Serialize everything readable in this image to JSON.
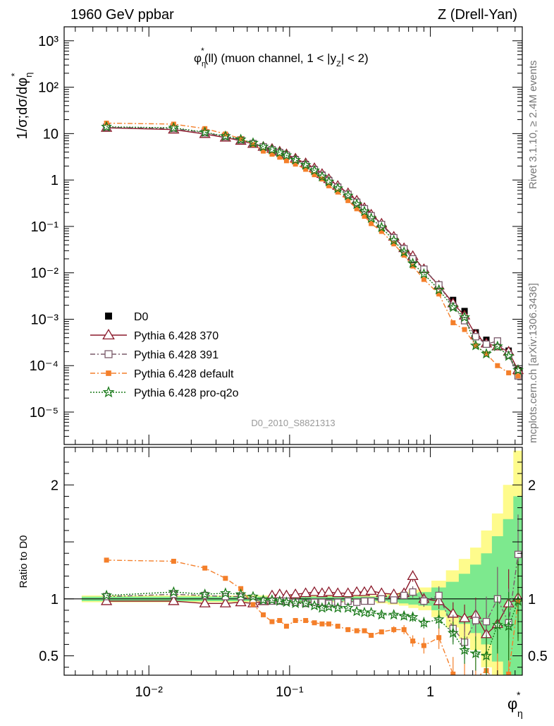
{
  "header": {
    "left": "1960 GeV ppbar",
    "right": "Z (Drell-Yan)"
  },
  "side_labels": {
    "rivet": "Rivet 3.1.10, ≥ 2.4M events",
    "mcplots": "mcplots.cern.ch [arXiv:1306.3436]"
  },
  "analysis_id": "D0_2010_S8821313",
  "chart_data": [
    {
      "panel": "main",
      "type": "line",
      "x_scale": "log",
      "y_scale": "log",
      "xlim": [
        0.0025,
        4.5
      ],
      "ylim": [
        2e-06,
        2000
      ],
      "ylabel": "1/σ;dσ/dφ*η",
      "title": "φ*η(ll) (muon channel, 1 < |yZ| < 2)",
      "y_tick_labels": [
        "10⁻⁵",
        "10⁻⁴",
        "10⁻³",
        "10⁻²",
        "10⁻¹",
        "1",
        "10",
        "10²",
        "10³"
      ],
      "y_tick_values": [
        1e-05,
        0.0001,
        0.001,
        0.01,
        0.1,
        1,
        10,
        100,
        1000
      ],
      "legend_position": "lower-left",
      "x": [
        0.005,
        0.015,
        0.025,
        0.035,
        0.045,
        0.055,
        0.065,
        0.075,
        0.085,
        0.095,
        0.11,
        0.13,
        0.15,
        0.17,
        0.19,
        0.22,
        0.26,
        0.3,
        0.34,
        0.38,
        0.45,
        0.55,
        0.65,
        0.75,
        0.9,
        1.15,
        1.45,
        1.75,
        2.1,
        2.5,
        3.0,
        3.6,
        4.2
      ],
      "series": [
        {
          "name": "D0",
          "marker": "filled-square",
          "color": "#000000",
          "line": "none",
          "values": [
            13.5,
            12.5,
            10.2,
            8.5,
            7.2,
            6.2,
            5.3,
            4.6,
            4.0,
            3.5,
            2.8,
            2.2,
            1.7,
            1.3,
            1.0,
            0.72,
            0.5,
            0.34,
            0.24,
            0.17,
            0.11,
            0.058,
            0.033,
            0.019,
            0.012,
            0.0053,
            0.0026,
            0.0015,
            0.00052,
            0.00036,
            0.00034,
            0.00021,
            8e-05
          ]
        },
        {
          "name": "Pythia 6.428 370",
          "marker": "open-triangle",
          "color": "#8b1a2b",
          "line": "solid",
          "values": [
            13.3,
            12.2,
            9.8,
            8.2,
            7.0,
            6.0,
            5.2,
            4.7,
            4.1,
            3.6,
            2.9,
            2.3,
            1.8,
            1.35,
            1.05,
            0.75,
            0.52,
            0.36,
            0.25,
            0.18,
            0.115,
            0.06,
            0.034,
            0.023,
            0.012,
            0.0053,
            0.0022,
            0.0012,
            0.00046,
            0.0003,
            0.00026,
            0.0002,
            8e-05
          ]
        },
        {
          "name": "Pythia 6.428 391",
          "marker": "open-square",
          "color": "#7a5a6a",
          "line": "dash-dot",
          "values": [
            13.7,
            12.9,
            10.4,
            8.6,
            7.3,
            6.1,
            5.2,
            4.5,
            3.9,
            3.4,
            2.7,
            2.1,
            1.65,
            1.25,
            0.96,
            0.7,
            0.49,
            0.33,
            0.24,
            0.17,
            0.11,
            0.057,
            0.033,
            0.02,
            0.012,
            0.0055,
            0.0019,
            0.00093,
            0.00042,
            0.00029,
            0.00034,
            0.00017,
            6e-05
          ]
        },
        {
          "name": "Pythia 6.428 default",
          "marker": "filled-square-small",
          "color": "#f47f2a",
          "line": "dash-dot",
          "values": [
            16.8,
            16.0,
            12.8,
            9.8,
            7.8,
            5.8,
            4.2,
            3.6,
            3.1,
            2.6,
            2.2,
            1.7,
            1.3,
            1.05,
            0.75,
            0.55,
            0.36,
            0.24,
            0.165,
            0.115,
            0.078,
            0.042,
            0.024,
            0.014,
            0.0072,
            0.0035,
            0.00084,
            0.0006,
            0.00027,
            0.00018,
            0.0001,
            7e-05,
            6e-05
          ]
        },
        {
          "name": "Pythia 6.428 pro-q2o",
          "marker": "open-star",
          "color": "#1a7a1a",
          "line": "dotted",
          "values": [
            14.0,
            13.3,
            10.7,
            8.8,
            7.5,
            6.3,
            5.2,
            4.5,
            3.9,
            3.4,
            2.7,
            2.1,
            1.6,
            1.18,
            0.92,
            0.66,
            0.46,
            0.3,
            0.21,
            0.15,
            0.095,
            0.05,
            0.028,
            0.016,
            0.0095,
            0.0043,
            0.0018,
            0.0011,
            0.00027,
            0.00018,
            0.00026,
            0.00016,
            8e-05
          ]
        }
      ]
    },
    {
      "panel": "ratio",
      "type": "line",
      "x_scale": "log",
      "y_scale": "linear",
      "xlim": [
        0.0025,
        4.5
      ],
      "ylim": [
        0.33,
        2.33
      ],
      "ylabel": "Ratio to D0",
      "xlabel": "φ*η",
      "x_tick_labels": [
        "10⁻²",
        "10⁻¹",
        "1"
      ],
      "x_tick_values": [
        0.01,
        0.1,
        1
      ],
      "y_tick_labels": [
        "0.5",
        "1",
        "2"
      ],
      "y_tick_values": [
        0.5,
        1,
        2
      ],
      "x": [
        0.005,
        0.015,
        0.025,
        0.035,
        0.045,
        0.055,
        0.065,
        0.075,
        0.085,
        0.095,
        0.11,
        0.13,
        0.15,
        0.17,
        0.19,
        0.22,
        0.26,
        0.3,
        0.34,
        0.38,
        0.45,
        0.55,
        0.65,
        0.75,
        0.9,
        1.15,
        1.45,
        1.75,
        2.1,
        2.5,
        3.0,
        3.6,
        4.2
      ],
      "band_inner": [
        0.02,
        0.02,
        0.02,
        0.02,
        0.02,
        0.02,
        0.02,
        0.02,
        0.02,
        0.02,
        0.02,
        0.02,
        0.02,
        0.02,
        0.02,
        0.02,
        0.02,
        0.02,
        0.02,
        0.02,
        0.02,
        0.03,
        0.04,
        0.05,
        0.06,
        0.1,
        0.15,
        0.22,
        0.3,
        0.4,
        0.55,
        0.7,
        0.9
      ],
      "band_outer": [
        0.03,
        0.03,
        0.03,
        0.03,
        0.03,
        0.03,
        0.03,
        0.03,
        0.03,
        0.03,
        0.03,
        0.03,
        0.03,
        0.03,
        0.03,
        0.03,
        0.03,
        0.03,
        0.03,
        0.03,
        0.04,
        0.05,
        0.06,
        0.08,
        0.1,
        0.16,
        0.25,
        0.35,
        0.45,
        0.6,
        0.75,
        1.0,
        1.3
      ],
      "series": [
        {
          "name": "Pythia 6.428 370",
          "values": [
            0.98,
            0.98,
            0.96,
            0.96,
            0.97,
            0.96,
            0.98,
            1.03,
            1.04,
            1.03,
            1.04,
            1.05,
            1.06,
            1.05,
            1.06,
            1.05,
            1.05,
            1.06,
            1.06,
            1.07,
            1.05,
            1.04,
            1.05,
            1.2,
            1.0,
            0.98,
            0.87,
            0.83,
            0.86,
            0.69,
            0.78,
            0.96,
            1.01
          ],
          "errors": [
            0.01,
            0.01,
            0.01,
            0.01,
            0.01,
            0.01,
            0.01,
            0.01,
            0.01,
            0.01,
            0.01,
            0.01,
            0.01,
            0.01,
            0.01,
            0.01,
            0.01,
            0.01,
            0.01,
            0.01,
            0.02,
            0.02,
            0.03,
            0.05,
            0.05,
            0.07,
            0.1,
            0.12,
            0.15,
            0.2,
            0.25,
            0.3,
            0.35
          ]
        },
        {
          "name": "Pythia 6.428 391",
          "values": [
            1.02,
            1.04,
            1.03,
            1.02,
            1.02,
            0.99,
            0.98,
            0.98,
            0.98,
            0.98,
            0.97,
            0.96,
            0.97,
            0.97,
            0.96,
            0.97,
            0.98,
            0.97,
            0.98,
            0.98,
            1.0,
            0.99,
            1.03,
            1.06,
            0.98,
            1.03,
            0.74,
            0.62,
            0.81,
            0.8,
            1.0,
            0.79,
            1.39
          ],
          "errors": [
            0.01,
            0.01,
            0.01,
            0.01,
            0.01,
            0.01,
            0.01,
            0.01,
            0.01,
            0.01,
            0.01,
            0.01,
            0.01,
            0.01,
            0.01,
            0.01,
            0.01,
            0.01,
            0.01,
            0.01,
            0.02,
            0.02,
            0.03,
            0.05,
            0.05,
            0.08,
            0.12,
            0.15,
            0.18,
            0.22,
            0.28,
            0.3,
            0.35
          ]
        },
        {
          "name": "Pythia 6.428 default",
          "values": [
            1.34,
            1.33,
            1.27,
            1.18,
            1.09,
            0.95,
            0.86,
            0.8,
            0.81,
            0.76,
            0.81,
            0.81,
            0.79,
            0.78,
            0.78,
            0.76,
            0.73,
            0.72,
            0.72,
            0.68,
            0.71,
            0.73,
            0.73,
            0.63,
            0.59,
            0.66,
            0.34,
            0.26,
            0.31,
            0.37,
            0.26,
            0.34,
            0.98
          ],
          "errors": [
            0.01,
            0.01,
            0.01,
            0.01,
            0.01,
            0.01,
            0.01,
            0.01,
            0.01,
            0.01,
            0.01,
            0.01,
            0.01,
            0.01,
            0.01,
            0.01,
            0.01,
            0.01,
            0.01,
            0.02,
            0.02,
            0.03,
            0.04,
            0.05,
            0.07,
            0.1,
            0.15,
            0.18,
            0.2,
            0.25,
            0.3,
            0.3,
            0.35
          ]
        },
        {
          "name": "Pythia 6.428 pro-q2o",
          "values": [
            1.03,
            1.06,
            1.04,
            1.05,
            1.04,
            1.02,
            0.99,
            0.99,
            0.98,
            0.97,
            0.96,
            0.96,
            0.94,
            0.92,
            0.93,
            0.92,
            0.92,
            0.89,
            0.88,
            0.88,
            0.86,
            0.86,
            0.85,
            0.84,
            0.79,
            0.82,
            0.7,
            0.55,
            0.52,
            0.5,
            0.77,
            0.76,
            0.98
          ],
          "errors": [
            0.01,
            0.01,
            0.01,
            0.01,
            0.01,
            0.01,
            0.01,
            0.01,
            0.01,
            0.01,
            0.01,
            0.01,
            0.01,
            0.01,
            0.01,
            0.01,
            0.01,
            0.01,
            0.01,
            0.01,
            0.02,
            0.02,
            0.03,
            0.04,
            0.05,
            0.08,
            0.1,
            0.12,
            0.15,
            0.18,
            0.25,
            0.3,
            0.35
          ]
        }
      ]
    }
  ]
}
